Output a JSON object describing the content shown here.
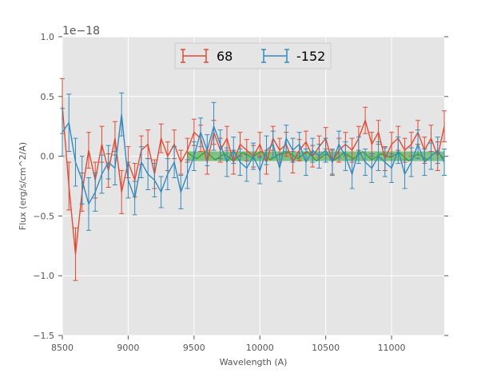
{
  "chart_data": {
    "type": "line",
    "title": "",
    "xlabel": "Wavelength (A)",
    "ylabel": "Flux (erg/s/cm^2/A)",
    "y_offset_label": "1e−18",
    "xlim": [
      8500,
      11400
    ],
    "ylim": [
      -1.5,
      1.0
    ],
    "xticks": [
      8500,
      9000,
      9500,
      10000,
      10500,
      11000
    ],
    "xtick_labels": [
      "8500",
      "9000",
      "9500",
      "10000",
      "10500",
      "11000"
    ],
    "yticks": [
      -1.5,
      -1.0,
      -0.5,
      0.0,
      0.5,
      1.0
    ],
    "ytick_labels": [
      "−1.5",
      "−1.0",
      "−0.5",
      "0.0",
      "0.5",
      "1.0"
    ],
    "grid": true,
    "legend_position": "top-center",
    "band": {
      "x_start": 9450,
      "x_end": 11400,
      "y_low": -0.04,
      "y_high": 0.04,
      "color": "#2ca02c"
    },
    "green_line": {
      "x": [
        9450,
        9520,
        9590,
        9660,
        9730,
        9800,
        9870,
        9940,
        10010,
        10080,
        10150,
        10220,
        10290,
        10360,
        10430,
        10500,
        10570,
        10640,
        10710,
        10780,
        10850,
        10920,
        10990,
        11060,
        11130,
        11200,
        11270,
        11340,
        11400
      ],
      "y": [
        0.03,
        -0.02,
        0.04,
        -0.03,
        0.02,
        -0.04,
        0.03,
        -0.01,
        0.04,
        -0.03,
        0.02,
        0.03,
        -0.02,
        0.04,
        -0.04,
        0.02,
        -0.03,
        0.03,
        -0.02,
        0.04,
        -0.03,
        0.02,
        -0.01,
        0.03,
        -0.04,
        0.02,
        -0.03,
        0.04,
        -0.02
      ]
    },
    "series": [
      {
        "name": "68",
        "color": "#e24a33",
        "x": [
          8500,
          8550,
          8600,
          8650,
          8700,
          8750,
          8800,
          8850,
          8900,
          8950,
          9000,
          9050,
          9100,
          9150,
          9200,
          9250,
          9300,
          9350,
          9400,
          9450,
          9500,
          9550,
          9600,
          9650,
          9700,
          9750,
          9800,
          9850,
          9900,
          9950,
          10000,
          10050,
          10100,
          10150,
          10200,
          10250,
          10300,
          10350,
          10400,
          10450,
          10500,
          10550,
          10600,
          10650,
          10700,
          10750,
          10800,
          10850,
          10900,
          10950,
          11000,
          11050,
          11100,
          11150,
          11200,
          11250,
          11300,
          11350,
          11400
        ],
        "y": [
          0.42,
          -0.25,
          -0.82,
          -0.3,
          0.05,
          -0.2,
          0.1,
          -0.12,
          0.15,
          -0.3,
          -0.05,
          -0.2,
          0.05,
          0.1,
          -0.15,
          0.15,
          0.0,
          0.1,
          -0.05,
          0.05,
          0.2,
          0.15,
          -0.05,
          0.2,
          0.05,
          0.15,
          -0.05,
          0.1,
          0.05,
          0.0,
          0.1,
          -0.05,
          0.15,
          0.05,
          0.1,
          -0.05,
          0.05,
          0.12,
          0.0,
          0.08,
          0.15,
          -0.05,
          0.05,
          0.1,
          0.05,
          0.15,
          0.3,
          0.1,
          0.2,
          -0.02,
          0.1,
          0.15,
          0.05,
          0.1,
          0.2,
          0.05,
          0.15,
          0.0,
          0.25
        ],
        "err": [
          0.23,
          0.2,
          0.22,
          0.16,
          0.15,
          0.15,
          0.15,
          0.14,
          0.14,
          0.18,
          0.13,
          0.14,
          0.12,
          0.12,
          0.12,
          0.12,
          0.12,
          0.12,
          0.1,
          0.1,
          0.11,
          0.11,
          0.1,
          0.1,
          0.1,
          0.1,
          0.1,
          0.1,
          0.09,
          0.09,
          0.1,
          0.1,
          0.1,
          0.1,
          0.1,
          0.09,
          0.09,
          0.09,
          0.09,
          0.09,
          0.09,
          0.1,
          0.1,
          0.1,
          0.1,
          0.1,
          0.11,
          0.1,
          0.1,
          0.1,
          0.1,
          0.1,
          0.1,
          0.1,
          0.1,
          0.11,
          0.11,
          0.12,
          0.13
        ]
      },
      {
        "name": "-152",
        "color": "#348abd",
        "x": [
          8500,
          8550,
          8600,
          8650,
          8700,
          8750,
          8800,
          8850,
          8900,
          8950,
          9000,
          9050,
          9100,
          9150,
          9200,
          9250,
          9300,
          9350,
          9400,
          9450,
          9500,
          9550,
          9600,
          9650,
          9700,
          9750,
          9800,
          9850,
          9900,
          9950,
          10000,
          10050,
          10100,
          10150,
          10200,
          10250,
          10300,
          10350,
          10400,
          10450,
          10500,
          10550,
          10600,
          10650,
          10700,
          10750,
          10800,
          10850,
          10900,
          10950,
          11000,
          11050,
          11100,
          11150,
          11200,
          11250,
          11300,
          11350,
          11400
        ],
        "y": [
          0.2,
          0.28,
          -0.05,
          -0.2,
          -0.4,
          -0.3,
          -0.15,
          -0.05,
          -0.1,
          0.35,
          -0.2,
          -0.35,
          -0.05,
          -0.15,
          -0.2,
          -0.3,
          -0.15,
          -0.05,
          -0.3,
          -0.15,
          0.0,
          0.2,
          0.05,
          0.25,
          0.1,
          -0.05,
          0.05,
          -0.05,
          -0.1,
          0.0,
          -0.12,
          0.05,
          0.1,
          -0.1,
          0.15,
          0.05,
          0.1,
          -0.05,
          0.05,
          0.0,
          0.05,
          -0.05,
          0.1,
          0.0,
          -0.15,
          0.05,
          -0.05,
          -0.1,
          0.0,
          -0.05,
          -0.1,
          0.05,
          -0.15,
          -0.05,
          0.1,
          -0.05,
          0.0,
          0.05,
          -0.05
        ],
        "err": [
          0.2,
          0.24,
          0.2,
          0.2,
          0.22,
          0.16,
          0.16,
          0.14,
          0.14,
          0.18,
          0.15,
          0.14,
          0.13,
          0.13,
          0.14,
          0.13,
          0.13,
          0.13,
          0.14,
          0.12,
          0.12,
          0.12,
          0.13,
          0.2,
          0.12,
          0.12,
          0.11,
          0.11,
          0.11,
          0.11,
          0.11,
          0.12,
          0.11,
          0.11,
          0.11,
          0.1,
          0.1,
          0.11,
          0.1,
          0.1,
          0.1,
          0.11,
          0.11,
          0.12,
          0.12,
          0.11,
          0.11,
          0.12,
          0.12,
          0.12,
          0.12,
          0.11,
          0.12,
          0.12,
          0.12,
          0.11,
          0.11,
          0.11,
          0.11
        ]
      }
    ]
  }
}
